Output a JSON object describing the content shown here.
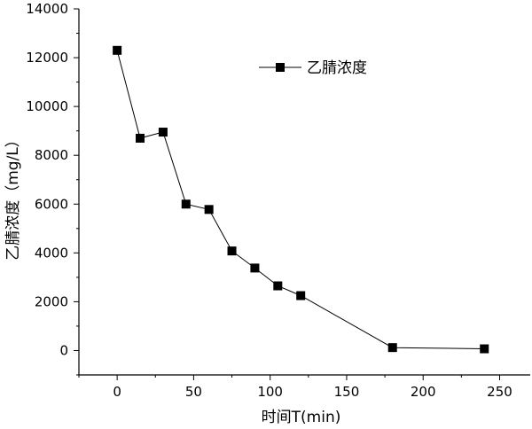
{
  "chart_data": {
    "type": "line",
    "title": "",
    "xlabel": "时间T(min)",
    "ylabel": "乙腈浓度（mg/L）",
    "xlim": [
      -25,
      270
    ],
    "ylim": [
      -1000,
      14000
    ],
    "xticks": [
      0,
      50,
      100,
      150,
      200,
      250
    ],
    "yticks": [
      0,
      2000,
      4000,
      6000,
      8000,
      10000,
      12000,
      14000
    ],
    "grid": false,
    "legend_position": "top-right",
    "series": [
      {
        "name": "乙腈浓度",
        "marker": "square",
        "color": "#000000",
        "x": [
          0,
          15,
          30,
          45,
          60,
          75,
          90,
          105,
          120,
          180,
          240
        ],
        "y": [
          12300,
          8700,
          8950,
          6000,
          5780,
          4080,
          3380,
          2650,
          2250,
          120,
          70
        ]
      }
    ]
  }
}
